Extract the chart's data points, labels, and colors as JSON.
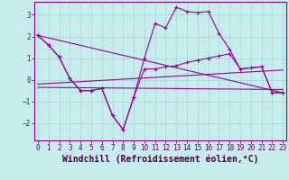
{
  "xlabel": "Windchill (Refroidissement éolien,°C)",
  "bg_color": "#c6ecec",
  "grid_color": "#aad8d8",
  "line_color": "#990099",
  "xticks": [
    0,
    1,
    2,
    3,
    4,
    5,
    6,
    7,
    8,
    9,
    10,
    11,
    12,
    13,
    14,
    15,
    16,
    17,
    18,
    19,
    20,
    21,
    22,
    23
  ],
  "yticks": [
    -2,
    -1,
    0,
    1,
    2,
    3
  ],
  "xlim": [
    -0.3,
    23.3
  ],
  "ylim": [
    -2.8,
    3.6
  ],
  "line1_x": [
    0,
    1,
    2,
    3,
    4,
    5,
    6,
    7,
    8,
    9,
    10,
    11,
    12,
    13,
    14,
    15,
    16,
    17,
    18,
    19,
    20,
    21,
    22,
    23
  ],
  "line1_y": [
    2.05,
    1.6,
    1.05,
    0.05,
    -0.5,
    -0.5,
    -0.4,
    -1.65,
    -2.3,
    -0.8,
    1.0,
    2.6,
    2.4,
    3.35,
    3.15,
    3.1,
    3.15,
    2.15,
    1.4,
    0.5,
    0.55,
    0.6,
    -0.6,
    -0.6
  ],
  "line2_x": [
    0,
    1,
    2,
    3,
    4,
    5,
    6,
    7,
    8,
    9,
    10,
    11,
    12,
    13,
    14,
    15,
    16,
    17,
    18,
    19,
    20,
    21,
    22,
    23
  ],
  "line2_y": [
    2.05,
    1.6,
    1.05,
    0.05,
    -0.5,
    -0.5,
    -0.4,
    -1.65,
    -2.3,
    -0.8,
    0.5,
    0.5,
    0.6,
    0.65,
    0.8,
    0.9,
    1.0,
    1.1,
    1.2,
    0.5,
    0.55,
    0.6,
    -0.6,
    -0.6
  ],
  "line3_x": [
    0,
    23
  ],
  "line3_y": [
    2.05,
    -0.6
  ],
  "line4_x": [
    0,
    23
  ],
  "line4_y": [
    -0.2,
    0.45
  ],
  "line5_x": [
    0,
    23
  ],
  "line5_y": [
    -0.35,
    -0.45
  ],
  "tick_fontsize": 5.5,
  "xlabel_fontsize": 7
}
